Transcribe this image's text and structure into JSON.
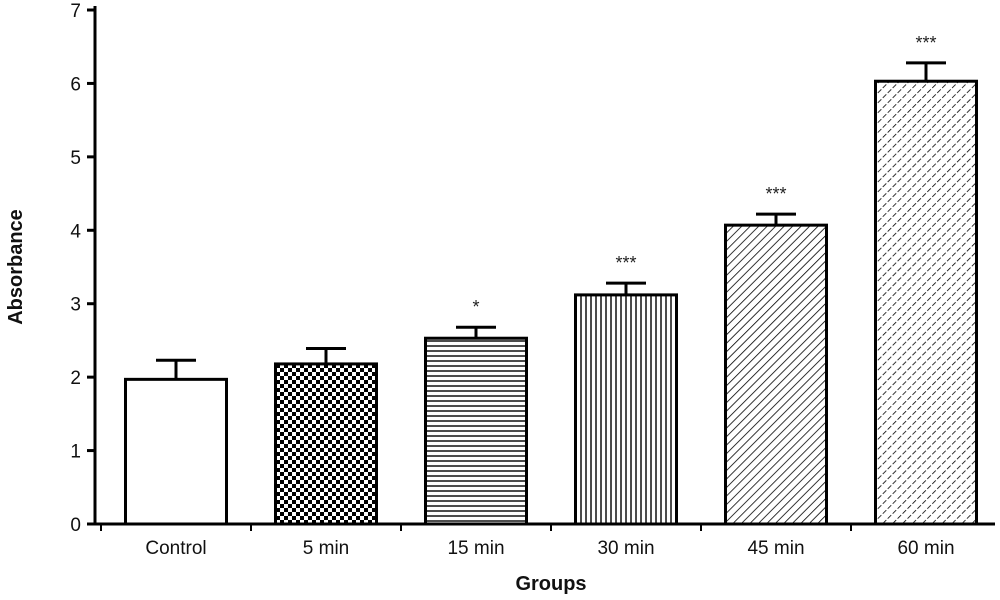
{
  "chart_data": {
    "type": "bar",
    "categories": [
      "Control",
      "5 min",
      "15 min",
      "30 min",
      "45 min",
      "60 min"
    ],
    "values": [
      1.97,
      2.18,
      2.53,
      3.12,
      4.07,
      6.03
    ],
    "errors": [
      0.26,
      0.21,
      0.15,
      0.16,
      0.15,
      0.25
    ],
    "annotations": [
      "",
      "",
      "*",
      "***",
      "***",
      "***"
    ],
    "bar_fills": [
      "plain",
      "checker",
      "horizontal-lines",
      "vertical-lines",
      "diagonal-lines",
      "diagonal-dashed-lines"
    ],
    "xlabel": "Groups",
    "ylabel": "Absorbance",
    "ylim": [
      0,
      7
    ],
    "yticks": [
      "0",
      "1",
      "2",
      "3",
      "4",
      "5",
      "6",
      "7"
    ],
    "grid": false,
    "legend": "none",
    "colors": {
      "bar_stroke": "#000000",
      "bar_background": "#ffffff",
      "axis": "#000000"
    }
  }
}
